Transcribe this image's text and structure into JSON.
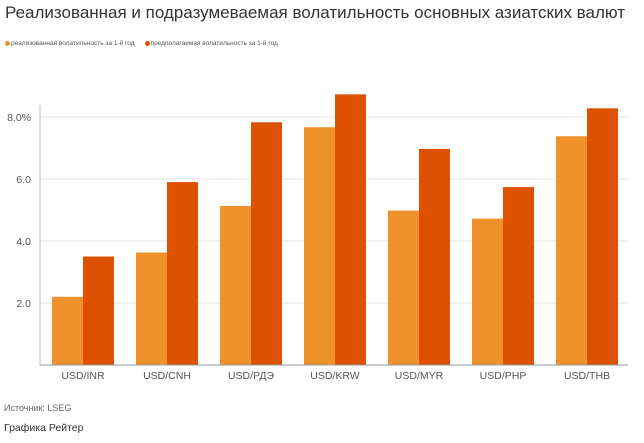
{
  "title": "Реализованная и подразумеваемая волатильность основных азиатских валют",
  "chart_data": {
    "type": "bar",
    "categories": [
      "USD/INR",
      "USD/CNH",
      "USD/РДЭ",
      "USD/KRW",
      "USD/MYR",
      "USD/PHP",
      "USD/THB"
    ],
    "series": [
      {
        "name": "реализованная волатильность за 1-й год",
        "color": "#F0922B",
        "values": [
          2.2,
          3.63,
          5.13,
          7.67,
          4.98,
          4.72,
          7.38
        ]
      },
      {
        "name": "предполагаемая волатильность за 1-й год",
        "color": "#DD5100",
        "values": [
          3.5,
          5.9,
          7.83,
          8.73,
          6.97,
          5.74,
          8.28
        ]
      }
    ],
    "y_ticks": [
      "2.0",
      "4.0",
      "6.0",
      "8.0%"
    ],
    "y_tick_values": [
      2,
      4,
      6,
      8
    ],
    "ylim": [
      0,
      9.6
    ],
    "grid": true,
    "legend_position": "top-left"
  },
  "source": "Источник: LSEG",
  "credit": "Графика Рейтер"
}
